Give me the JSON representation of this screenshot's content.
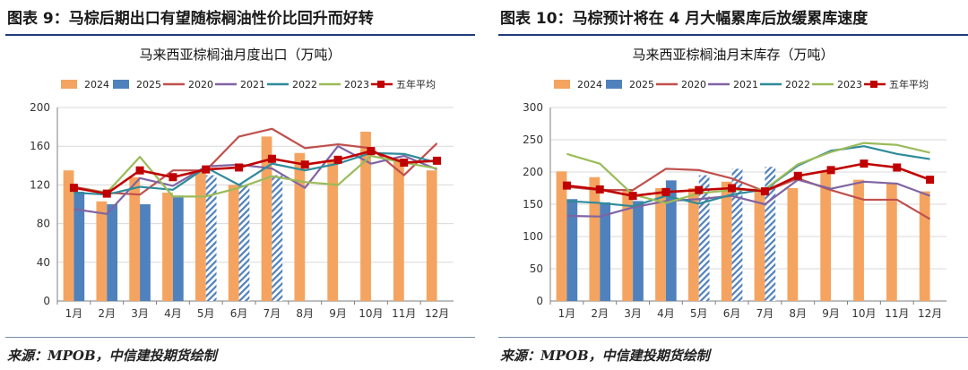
{
  "panels": [
    {
      "title": "图表 9：马棕后期出口有望随棕榈油性价比回升而好转",
      "source": "来源：MPOB，中信建投期货绘制",
      "chart_data": {
        "type": "bar",
        "title": "马来西亚棕榈油月度出口（万吨）",
        "categories": [
          "1月",
          "2月",
          "3月",
          "4月",
          "5月",
          "6月",
          "7月",
          "8月",
          "9月",
          "10月",
          "11月",
          "12月"
        ],
        "ylim": [
          0,
          200
        ],
        "yticks": [
          0,
          40,
          80,
          120,
          160,
          200
        ],
        "grid": true,
        "legend": "top",
        "bars": [
          {
            "name": "2024",
            "color": "#F4A460",
            "values": [
              135,
              103,
              128,
              112,
              135,
              120,
              170,
              153,
              146,
              175,
              147,
              135
            ]
          },
          {
            "name": "2025",
            "color": "#4F81BD",
            "values": [
              113,
              100,
              100,
              109,
              130,
              120,
              130
            ],
            "hatched_from_index": 4
          }
        ],
        "lines": [
          {
            "name": "2020",
            "color": "#C0504D",
            "values": [
              118,
              112,
              110,
              135,
              135,
              170,
              178,
              158,
              162,
              158,
              130,
              163
            ]
          },
          {
            "name": "2021",
            "color": "#8064A2",
            "values": [
              95,
              90,
              127,
              119,
              139,
              141,
              137,
              117,
              160,
              142,
              150,
              136
            ]
          },
          {
            "name": "2022",
            "color": "#2E8B9A",
            "values": [
              112,
              110,
              118,
              115,
              138,
              120,
              142,
              135,
              142,
              153,
              152,
              143
            ]
          },
          {
            "name": "2023",
            "color": "#9BBB59",
            "values": [
              117,
              112,
              149,
              108,
              108,
              117,
              129,
              123,
              120,
              150,
              143,
              137
            ]
          }
        ],
        "avg": {
          "name": "五年平均",
          "color": "#C00000",
          "values": [
            117,
            111,
            135,
            128,
            136,
            138,
            147,
            141,
            146,
            155,
            143,
            145
          ]
        }
      }
    },
    {
      "title": "图表 10：马棕预计将在 4 月大幅累库后放缓累库速度",
      "source": "来源：MPOB，中信建投期货绘制",
      "chart_data": {
        "type": "bar",
        "title": "马来西亚棕榈油月末库存（万吨）",
        "categories": [
          "1月",
          "2月",
          "3月",
          "4月",
          "5月",
          "6月",
          "7月",
          "8月",
          "9月",
          "10月",
          "11月",
          "12月"
        ],
        "ylim": [
          0,
          300
        ],
        "yticks": [
          0,
          50,
          100,
          150,
          200,
          250,
          300
        ],
        "grid": true,
        "legend": "top",
        "bars": [
          {
            "name": "2024",
            "color": "#F4A460",
            "values": [
              201,
              192,
              171,
              175,
              175,
              185,
              172,
              175,
              200,
              188,
              182,
              170
            ]
          },
          {
            "name": "2025",
            "color": "#4F81BD",
            "values": [
              158,
              153,
              155,
              187,
              195,
              205,
              208
            ],
            "hatched_from_index": 4
          }
        ],
        "lines": [
          {
            "name": "2020",
            "color": "#C0504D",
            "values": [
              177,
              172,
              172,
              205,
              203,
              190,
              170,
              190,
              172,
              157,
              157,
              127
            ]
          },
          {
            "name": "2021",
            "color": "#8064A2",
            "values": [
              132,
              131,
              145,
              155,
              158,
              163,
              150,
              188,
              174,
              185,
              182,
              163
            ]
          },
          {
            "name": "2022",
            "color": "#2E8B9A",
            "values": [
              155,
              152,
              147,
              163,
              151,
              165,
              173,
              210,
              233,
              240,
              228,
              220
            ]
          },
          {
            "name": "2023",
            "color": "#9BBB59",
            "values": [
              228,
              213,
              165,
              152,
              167,
              172,
              173,
              212,
              231,
              245,
              242,
              230
            ]
          }
        ],
        "avg": {
          "name": "五年平均",
          "color": "#C00000",
          "values": [
            179,
            173,
            163,
            169,
            172,
            175,
            170,
            194,
            203,
            213,
            207,
            188
          ]
        }
      }
    }
  ]
}
